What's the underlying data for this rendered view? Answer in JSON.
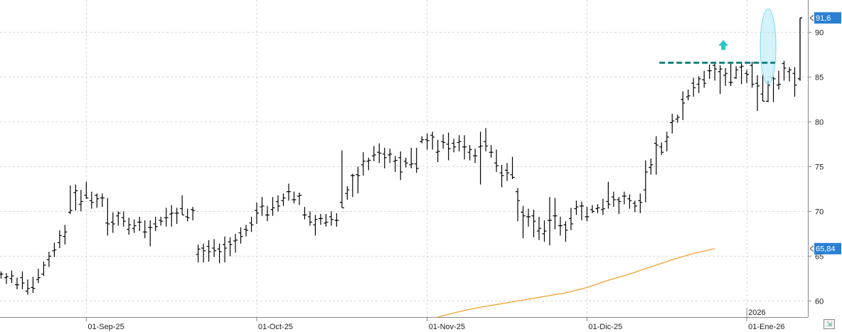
{
  "chart_data": {
    "type": "ohlc",
    "title": "",
    "xlabel": "",
    "ylabel": "",
    "ylim": [
      58.2,
      93.6
    ],
    "grid": true,
    "y_ticks": [
      60,
      65,
      70,
      75,
      80,
      85,
      90
    ],
    "x_tick_labels": [
      {
        "label": "01-Sep-25",
        "bar": 16
      },
      {
        "label": "01-Oct-25",
        "bar": 48
      },
      {
        "label": "01-Nov-25",
        "bar": 80
      },
      {
        "label": "01-Dic-25",
        "bar": 110
      },
      {
        "label": "01-Ene-26",
        "bar": 140
      }
    ],
    "year_marker": {
      "label": "2026",
      "bar": 140
    },
    "ohlc": [
      [
        63.0,
        63.3,
        62.5,
        63.0
      ],
      [
        62.6,
        63.1,
        61.9,
        62.7
      ],
      [
        62.5,
        63.4,
        62.0,
        62.8
      ],
      [
        61.8,
        62.6,
        61.3,
        61.8
      ],
      [
        62.6,
        63.3,
        61.3,
        62.0
      ],
      [
        61.1,
        62.4,
        60.7,
        61.4
      ],
      [
        61.5,
        62.7,
        60.9,
        61.4
      ],
      [
        62.4,
        63.6,
        62.0,
        62.6
      ],
      [
        63.0,
        64.4,
        62.8,
        64.0
      ],
      [
        64.6,
        65.5,
        63.8,
        65.0
      ],
      [
        65.6,
        66.5,
        64.9,
        65.7
      ],
      [
        66.5,
        67.9,
        65.9,
        67.3
      ],
      [
        67.2,
        68.5,
        66.3,
        67.7
      ],
      [
        69.9,
        72.9,
        69.7,
        70.1
      ],
      [
        72.1,
        73.0,
        70.1,
        72.3
      ],
      [
        70.8,
        72.4,
        70.0,
        71.1
      ],
      [
        71.8,
        73.3,
        71.4,
        71.5
      ],
      [
        71.2,
        72.2,
        70.3,
        71.0
      ],
      [
        71.8,
        72.0,
        70.4,
        71.4
      ],
      [
        71.5,
        72.0,
        70.5,
        71.5
      ],
      [
        68.7,
        71.5,
        67.3,
        68.6
      ],
      [
        68.8,
        69.9,
        67.6,
        68.6
      ],
      [
        69.5,
        70.0,
        68.4,
        69.8
      ],
      [
        69.3,
        70.0,
        68.3,
        68.9
      ],
      [
        68.0,
        69.3,
        67.4,
        68.5
      ],
      [
        68.1,
        69.1,
        67.6,
        68.4
      ],
      [
        68.8,
        69.4,
        67.8,
        68.8
      ],
      [
        67.7,
        69.0,
        67.0,
        67.7
      ],
      [
        68.2,
        69.0,
        66.1,
        68.2
      ],
      [
        68.6,
        69.4,
        67.8,
        68.3
      ],
      [
        69.0,
        69.4,
        68.4,
        68.9
      ],
      [
        69.3,
        70.4,
        68.3,
        69.3
      ],
      [
        69.7,
        70.7,
        68.3,
        69.8
      ],
      [
        69.8,
        70.4,
        68.6,
        69.8
      ],
      [
        70.3,
        71.8,
        69.6,
        69.6
      ],
      [
        69.4,
        70.3,
        68.9,
        69.3
      ],
      [
        70.2,
        70.5,
        69.0,
        70.1
      ],
      [
        65.2,
        66.3,
        64.3,
        65.8
      ],
      [
        65.9,
        66.4,
        64.3,
        65.6
      ],
      [
        66.1,
        66.8,
        64.4,
        65.5
      ],
      [
        65.9,
        66.9,
        64.9,
        65.6
      ],
      [
        65.8,
        66.4,
        64.2,
        65.5
      ],
      [
        66.3,
        67.2,
        64.3,
        65.9
      ],
      [
        66.6,
        67.1,
        65.0,
        66.3
      ],
      [
        66.7,
        67.5,
        65.4,
        66.8
      ],
      [
        67.6,
        68.2,
        66.4,
        67.2
      ],
      [
        68.0,
        68.5,
        67.2,
        67.9
      ],
      [
        68.7,
        69.4,
        67.7,
        68.5
      ],
      [
        70.1,
        71.0,
        68.6,
        69.8
      ],
      [
        70.5,
        71.6,
        69.5,
        70.6
      ],
      [
        69.6,
        70.6,
        68.9,
        69.6
      ],
      [
        70.2,
        71.6,
        69.5,
        70.4
      ],
      [
        71.1,
        71.8,
        70.0,
        70.6
      ],
      [
        71.2,
        72.0,
        70.6,
        71.5
      ],
      [
        72.2,
        73.1,
        71.2,
        72.2
      ],
      [
        71.3,
        72.2,
        70.9,
        71.3
      ],
      [
        71.7,
        72.1,
        70.7,
        71.8
      ],
      [
        69.6,
        70.5,
        69.1,
        69.6
      ],
      [
        69.4,
        70.0,
        68.4,
        68.8
      ],
      [
        68.5,
        69.6,
        67.3,
        69.1
      ],
      [
        69.2,
        69.7,
        68.5,
        69.2
      ],
      [
        68.7,
        69.7,
        68.3,
        68.8
      ],
      [
        69.4,
        70.0,
        68.4,
        69.1
      ],
      [
        69.0,
        69.8,
        68.3,
        69.0
      ],
      [
        71.0,
        76.8,
        70.4,
        70.4
      ],
      [
        72.0,
        72.8,
        71.3,
        72.4
      ],
      [
        74.0,
        74.2,
        71.6,
        74.0
      ],
      [
        74.1,
        75.0,
        72.0,
        74.0
      ],
      [
        75.2,
        76.6,
        74.0,
        75.6
      ],
      [
        75.6,
        76.0,
        74.6,
        75.7
      ],
      [
        76.2,
        77.3,
        75.6,
        76.3
      ],
      [
        76.6,
        77.6,
        75.4,
        76.5
      ],
      [
        76.4,
        77.1,
        74.8,
        76.0
      ],
      [
        76.3,
        77.0,
        75.4,
        76.4
      ],
      [
        75.6,
        76.2,
        74.4,
        75.7
      ],
      [
        76.0,
        76.7,
        73.5,
        74.4
      ],
      [
        75.6,
        76.0,
        74.9,
        75.4
      ],
      [
        75.2,
        77.1,
        74.8,
        75.3
      ],
      [
        75.3,
        77.1,
        74.3,
        74.8
      ],
      [
        77.8,
        78.4,
        77.6,
        78.0
      ],
      [
        78.0,
        78.7,
        76.9,
        77.9
      ],
      [
        78.5,
        78.9,
        76.9,
        78.3
      ],
      [
        76.6,
        78.0,
        75.5,
        76.7
      ],
      [
        77.8,
        78.6,
        77.0,
        77.7
      ],
      [
        77.5,
        78.8,
        75.7,
        77.0
      ],
      [
        77.6,
        78.1,
        76.6,
        77.2
      ],
      [
        77.7,
        78.5,
        76.7,
        77.8
      ],
      [
        77.2,
        78.5,
        75.8,
        77.2
      ],
      [
        76.6,
        77.4,
        75.7,
        76.9
      ],
      [
        76.2,
        77.0,
        75.4,
        76.2
      ],
      [
        77.2,
        78.9,
        73.0,
        77.3
      ],
      [
        77.8,
        79.3,
        76.7,
        77.3
      ],
      [
        76.6,
        77.4,
        76.0,
        76.6
      ],
      [
        75.4,
        76.9,
        74.4,
        75.1
      ],
      [
        74.3,
        75.2,
        72.7,
        74.0
      ],
      [
        74.6,
        75.4,
        73.4,
        74.3
      ],
      [
        74.1,
        76.1,
        73.6,
        73.8
      ],
      [
        72.2,
        72.6,
        68.9,
        71.2
      ],
      [
        69.9,
        70.6,
        67.0,
        69.5
      ],
      [
        69.4,
        70.3,
        68.3,
        69.4
      ],
      [
        69.5,
        70.2,
        67.1,
        68.9
      ],
      [
        67.8,
        69.4,
        66.8,
        68.1
      ],
      [
        67.5,
        69.0,
        66.6,
        67.8
      ],
      [
        69.0,
        71.6,
        66.2,
        69.0
      ],
      [
        69.5,
        71.5,
        68.0,
        69.5
      ],
      [
        68.4,
        69.4,
        67.3,
        68.4
      ],
      [
        68.5,
        68.9,
        66.6,
        67.9
      ],
      [
        69.2,
        70.4,
        67.9,
        68.6
      ],
      [
        70.3,
        71.2,
        69.6,
        70.5
      ],
      [
        70.6,
        71.1,
        69.0,
        70.6
      ],
      [
        69.4,
        70.5,
        68.9,
        69.4
      ],
      [
        70.2,
        70.7,
        69.8,
        70.0
      ],
      [
        70.3,
        70.8,
        69.8,
        70.4
      ],
      [
        70.2,
        71.4,
        69.6,
        70.3
      ],
      [
        71.1,
        73.3,
        70.3,
        70.8
      ],
      [
        71.6,
        72.2,
        70.5,
        71.3
      ],
      [
        71.3,
        71.6,
        69.7,
        71.1
      ],
      [
        71.7,
        72.2,
        70.8,
        71.7
      ],
      [
        71.4,
        71.9,
        70.3,
        71.2
      ],
      [
        70.9,
        71.2,
        69.9,
        70.6
      ],
      [
        71.2,
        72.0,
        69.8,
        71.0
      ],
      [
        72.4,
        75.7,
        71.0,
        74.4
      ],
      [
        74.9,
        75.9,
        74.1,
        75.2
      ],
      [
        77.6,
        78.4,
        74.1,
        77.4
      ],
      [
        77.2,
        77.7,
        76.3,
        76.6
      ],
      [
        77.8,
        78.9,
        76.7,
        78.3
      ],
      [
        79.9,
        80.9,
        78.7,
        80.1
      ],
      [
        80.3,
        80.8,
        79.9,
        80.5
      ],
      [
        82.5,
        83.4,
        80.2,
        82.1
      ],
      [
        82.8,
        83.6,
        82.4,
        82.9
      ],
      [
        84.3,
        84.9,
        82.8,
        83.8
      ],
      [
        84.2,
        85.1,
        83.2,
        84.8
      ],
      [
        84.7,
        85.7,
        83.8,
        84.3
      ],
      [
        85.7,
        86.4,
        84.8,
        85.7
      ],
      [
        86.3,
        86.5,
        84.6,
        85.9
      ],
      [
        85.6,
        86.3,
        83.1,
        85.9
      ],
      [
        85.2,
        86.0,
        84.0,
        85.4
      ],
      [
        84.4,
        86.6,
        84.0,
        84.4
      ],
      [
        84.9,
        86.2,
        84.8,
        85.8
      ],
      [
        86.1,
        86.6,
        84.2,
        86.2
      ],
      [
        85.4,
        85.8,
        84.3,
        85.3
      ],
      [
        86.3,
        86.7,
        83.8,
        84.2
      ],
      [
        84.3,
        85.2,
        81.2,
        84.0
      ],
      [
        83.1,
        85.3,
        82.3,
        82.3
      ],
      [
        82.3,
        84.6,
        82.2,
        84.1
      ],
      [
        84.9,
        85.0,
        82.2,
        84.8
      ],
      [
        84.1,
        85.7,
        83.6,
        84.2
      ],
      [
        86.5,
        86.8,
        84.6,
        86.0
      ],
      [
        85.6,
        86.1,
        84.5,
        85.8
      ],
      [
        85.4,
        86.1,
        82.8,
        84.1
      ],
      [
        84.8,
        91.6,
        84.6,
        91.6
      ]
    ],
    "moving_average": {
      "color": "#f0a030",
      "points": [
        [
          82,
          58.2
        ],
        [
          86,
          58.8
        ],
        [
          90,
          59.3
        ],
        [
          94,
          59.7
        ],
        [
          98,
          60.1
        ],
        [
          102,
          60.5
        ],
        [
          106,
          60.9
        ],
        [
          110,
          61.5
        ],
        [
          114,
          62.3
        ],
        [
          118,
          63.0
        ],
        [
          122,
          63.8
        ],
        [
          126,
          64.6
        ],
        [
          130,
          65.3
        ],
        [
          134,
          65.84
        ]
      ],
      "last_value": "65,84"
    },
    "resistance": {
      "value": 86.6,
      "from_bar": 124,
      "to_bar": 144,
      "color": "#167f7f"
    },
    "breakout_marker": {
      "bar": 136,
      "value": 88.5,
      "color": "#2ec4c4"
    },
    "last_price": {
      "value": 91.6,
      "label": "91,6",
      "color": "#2a7fd4"
    },
    "highlight_ellipse": {
      "bar": 144,
      "value_top": 92.6,
      "value_bottom": 84.2,
      "color": "#aee7f5"
    }
  }
}
